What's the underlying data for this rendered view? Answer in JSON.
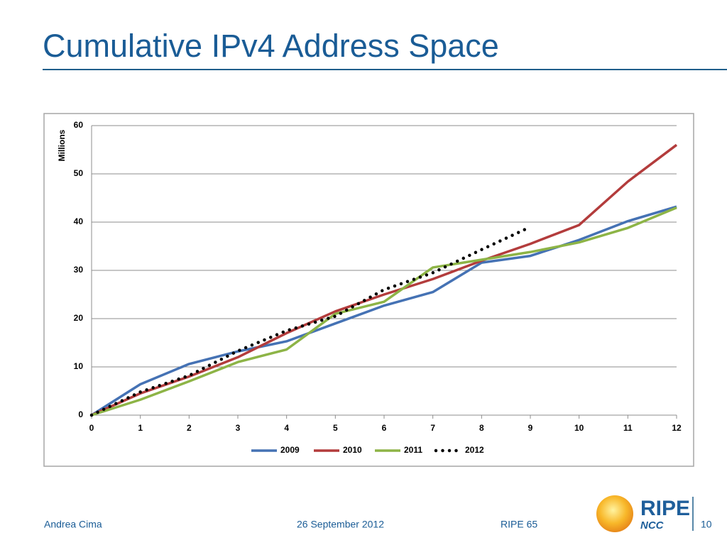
{
  "title": "Cumulative IPv4 Address Space",
  "footer": {
    "author": "Andrea Cima",
    "date": "26 September 2012",
    "event": "RIPE 65",
    "page": "10"
  },
  "logo": {
    "name": "RIPE",
    "sub": "NCC"
  },
  "chart_data": {
    "type": "line",
    "y_label": "Millions",
    "x": [
      0,
      1,
      2,
      3,
      4,
      5,
      6,
      7,
      8,
      9,
      10,
      11,
      12
    ],
    "xlim": [
      0,
      12
    ],
    "xticks": [
      0,
      1,
      2,
      3,
      4,
      5,
      6,
      7,
      8,
      9,
      10,
      11,
      12
    ],
    "ylim": [
      0,
      60
    ],
    "yticks": [
      0,
      10,
      20,
      30,
      40,
      50,
      60
    ],
    "grid": true,
    "legend": "bottom",
    "series": [
      {
        "name": "2009",
        "color": "#4572b4",
        "line_style": "solid",
        "values": [
          0,
          6.4,
          10.6,
          13.2,
          15.3,
          19,
          22.7,
          25.5,
          31.6,
          33,
          36.3,
          40.2,
          43.2
        ]
      },
      {
        "name": "2010",
        "color": "#b33c3c",
        "line_style": "solid",
        "values": [
          0,
          4.5,
          8,
          12,
          17,
          21.5,
          25,
          28.2,
          32,
          35.5,
          39.4,
          48.4,
          56
        ]
      },
      {
        "name": "2011",
        "color": "#8db446",
        "line_style": "solid",
        "values": [
          0,
          3.2,
          7,
          11,
          13.6,
          21,
          23.5,
          30.6,
          32.2,
          33.8,
          35.8,
          38.8,
          43
        ]
      },
      {
        "name": "2012",
        "color": "#000000",
        "line_style": "dotted",
        "values": [
          0,
          4.8,
          8.2,
          13.3,
          17.5,
          20.5,
          26,
          29.5,
          34.3,
          39,
          null,
          null,
          null
        ]
      }
    ]
  }
}
